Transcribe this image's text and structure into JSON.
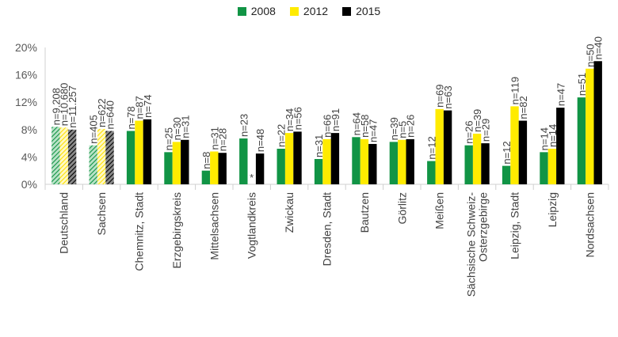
{
  "chart_data": {
    "type": "bar",
    "title": "",
    "xlabel": "",
    "ylabel": "",
    "ylim": [
      0,
      20
    ],
    "yticks": [
      "0%",
      "4%",
      "8%",
      "12%",
      "16%",
      "20%"
    ],
    "grid": false,
    "legend_position": "top-center",
    "categories": [
      "Deutschland",
      "Sachsen",
      "Chemnitz, Stadt",
      "Erzgebirgskreis",
      "Mittelsachsen",
      "Vogtlandkreis",
      "Zwickau",
      "Dresden, Stadt",
      "Bautzen",
      "Görlitz",
      "Meißen",
      "Sächsische Schweiz-Osterzgebirge",
      "Leipzig, Stadt",
      "Leipzig",
      "Nordsachsen"
    ],
    "category_labels": [
      [
        "Deutschland"
      ],
      [
        "Sachsen"
      ],
      [
        "Chemnitz, Stadt"
      ],
      [
        "Erzgebirgskreis"
      ],
      [
        "Mittelsachsen"
      ],
      [
        "Vogtlandkreis"
      ],
      [
        "Zwickau"
      ],
      [
        "Dresden, Stadt"
      ],
      [
        "Bautzen"
      ],
      [
        "Görlitz"
      ],
      [
        "Meißen"
      ],
      [
        "Sächsische Schweiz-",
        "Osterzgebirge"
      ],
      [
        "Leipzig, Stadt"
      ],
      [
        "Leipzig"
      ],
      [
        "Nordsachsen"
      ]
    ],
    "series": [
      {
        "name": "2008",
        "color": "#119445",
        "values": [
          8.4,
          5.7,
          7.8,
          4.7,
          2.0,
          6.7,
          5.2,
          3.7,
          6.9,
          6.2,
          3.4,
          5.7,
          2.7,
          4.7,
          12.7
        ],
        "n_labels": [
          "n=9.208",
          "n=405",
          "n=78",
          "n=25",
          "n=8",
          "n=23",
          "n=22",
          "n=31",
          "n=64",
          "n=39",
          "n=12",
          "n=26",
          "n=12",
          "n=14",
          "n=51"
        ]
      },
      {
        "name": "2012",
        "color": "#ffeb00",
        "values": [
          8.3,
          8.1,
          9.3,
          6.2,
          4.8,
          null,
          7.5,
          6.6,
          6.6,
          6.5,
          11.0,
          7.4,
          11.4,
          5.2,
          16.9
        ],
        "n_labels": [
          "n=10.680",
          "n=622",
          "n=87",
          "n=30",
          "n=31",
          "*",
          "n=34",
          "n=66",
          "n=58",
          "n=5",
          "n=69",
          "n=39",
          "n=119",
          "n=14",
          "n=50"
        ]
      },
      {
        "name": "2015",
        "color": "#000000",
        "values": [
          8.0,
          7.8,
          9.5,
          6.5,
          4.6,
          4.5,
          7.7,
          7.5,
          5.9,
          6.6,
          10.8,
          6.0,
          9.3,
          11.2,
          18.0
        ],
        "n_labels": [
          "n=11.257",
          "n=640",
          "n=74",
          "n=31",
          "n=28",
          "n=48",
          "n=56",
          "n=91",
          "n=47",
          "n=26",
          "n=63",
          "n=29",
          "n=82",
          "n=47",
          "n=40"
        ]
      }
    ],
    "hatched_categories": [
      "Deutschland",
      "Sachsen"
    ]
  }
}
